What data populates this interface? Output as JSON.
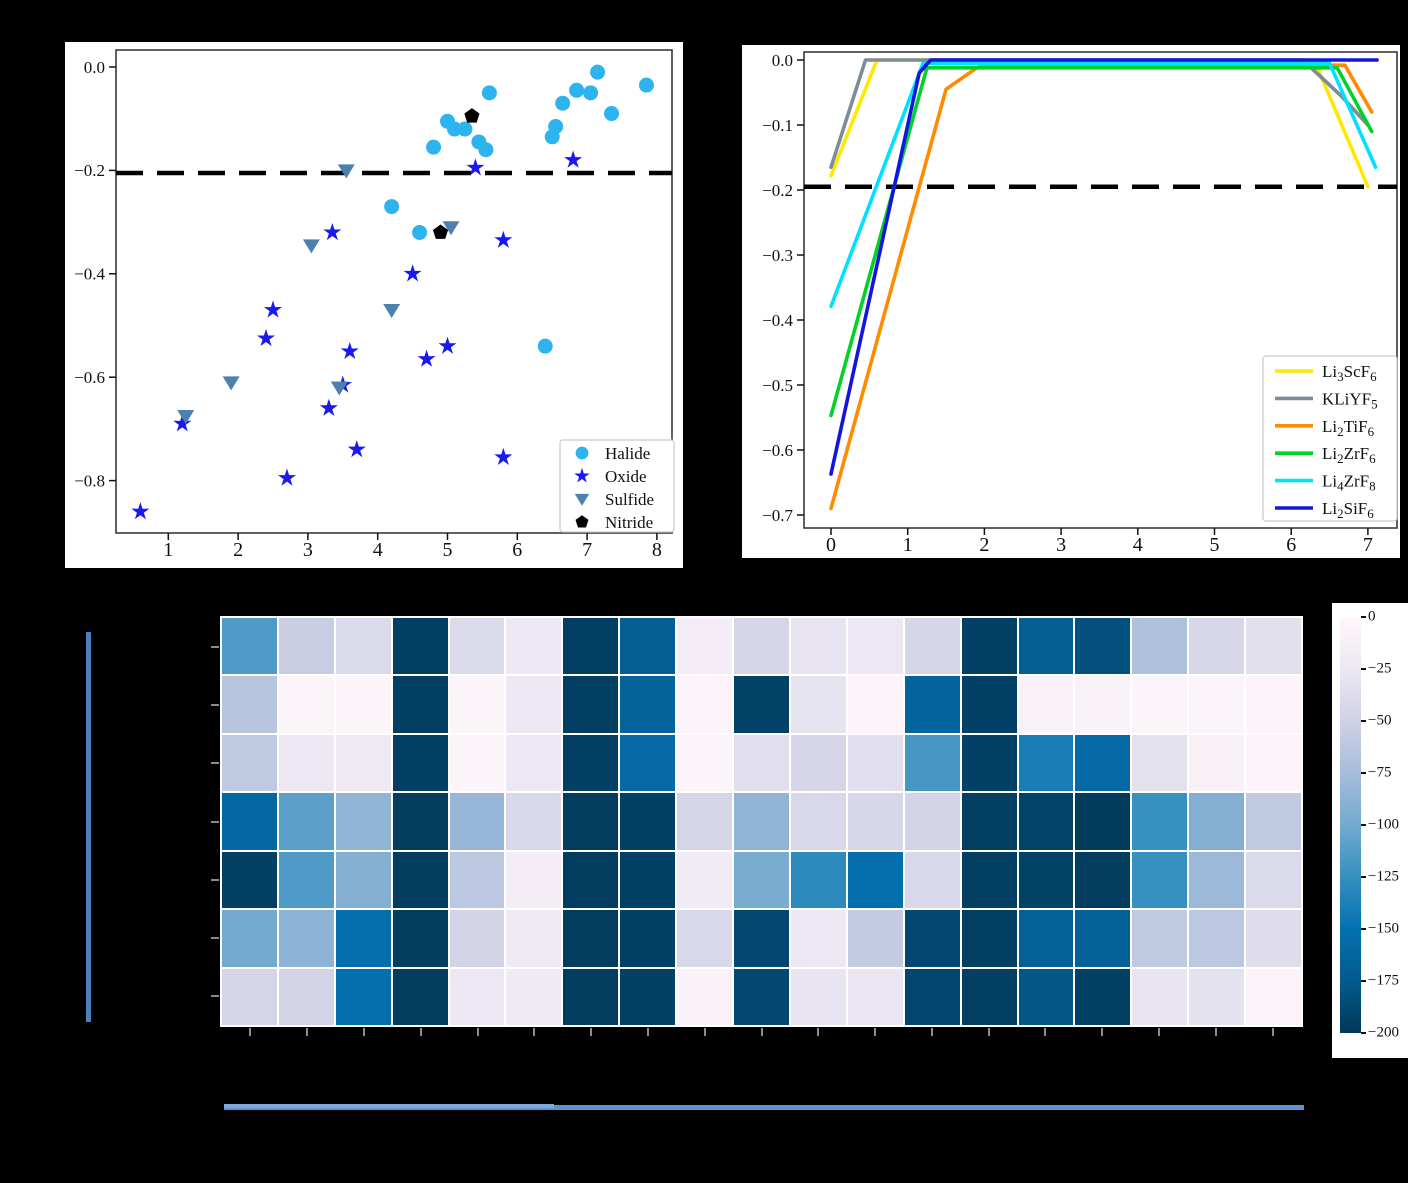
{
  "figure": {
    "background": "#000000",
    "panel_background": "#ffffff"
  },
  "chart_data": [
    {
      "id": "scatter-decomposition-energy",
      "type": "scatter",
      "title": "",
      "xlabel": "",
      "ylabel": "",
      "xlim": [
        0.25,
        8.22
      ],
      "ylim": [
        -0.901,
        0.033
      ],
      "x_ticks": [
        "1",
        "2",
        "3",
        "4",
        "5",
        "6",
        "7",
        "8"
      ],
      "y_ticks": [
        {
          "v": 0.0,
          "label": "0.0"
        },
        {
          "v": -0.2,
          "label": "−0.2"
        },
        {
          "v": -0.4,
          "label": "−0.4"
        },
        {
          "v": -0.6,
          "label": "−0.6"
        },
        {
          "v": -0.8,
          "label": "−0.8"
        }
      ],
      "dashed_line_y": -0.205,
      "grid": false,
      "legend_position": "lower right",
      "series": [
        {
          "name": "Halide",
          "marker": "circle",
          "color": "#2db4ee",
          "points": [
            [
              4.8,
              -0.155
            ],
            [
              5.0,
              -0.105
            ],
            [
              5.1,
              -0.12
            ],
            [
              5.25,
              -0.12
            ],
            [
              5.45,
              -0.145
            ],
            [
              5.55,
              -0.16
            ],
            [
              5.6,
              -0.05
            ],
            [
              6.5,
              -0.135
            ],
            [
              6.55,
              -0.115
            ],
            [
              6.65,
              -0.07
            ],
            [
              6.85,
              -0.045
            ],
            [
              7.05,
              -0.05
            ],
            [
              7.15,
              -0.01
            ],
            [
              7.35,
              -0.09
            ],
            [
              7.85,
              -0.035
            ],
            [
              4.2,
              -0.27
            ],
            [
              4.6,
              -0.32
            ],
            [
              6.4,
              -0.54
            ]
          ]
        },
        {
          "name": "Oxide",
          "marker": "star",
          "color": "#1a1af0",
          "points": [
            [
              5.4,
              -0.195
            ],
            [
              6.8,
              -0.18
            ],
            [
              3.35,
              -0.32
            ],
            [
              5.8,
              -0.335
            ],
            [
              4.5,
              -0.4
            ],
            [
              2.5,
              -0.47
            ],
            [
              2.4,
              -0.525
            ],
            [
              3.6,
              -0.55
            ],
            [
              4.7,
              -0.565
            ],
            [
              5.0,
              -0.54
            ],
            [
              1.2,
              -0.69
            ],
            [
              3.5,
              -0.615
            ],
            [
              3.3,
              -0.66
            ],
            [
              3.7,
              -0.74
            ],
            [
              5.8,
              -0.755
            ],
            [
              2.7,
              -0.795
            ],
            [
              0.6,
              -0.86
            ]
          ]
        },
        {
          "name": "Sulfide",
          "marker": "triangle-down",
          "color": "#4d80ad",
          "points": [
            [
              3.55,
              -0.2
            ],
            [
              3.05,
              -0.345
            ],
            [
              5.05,
              -0.31
            ],
            [
              4.2,
              -0.47
            ],
            [
              1.9,
              -0.61
            ],
            [
              3.45,
              -0.62
            ],
            [
              1.25,
              -0.675
            ]
          ]
        },
        {
          "name": "Nitride",
          "marker": "pentagon",
          "color": "#000000",
          "points": [
            [
              5.35,
              -0.095
            ],
            [
              4.9,
              -0.32
            ]
          ]
        }
      ]
    },
    {
      "id": "line-energy-vs-voltage",
      "type": "line",
      "title": "",
      "xlabel": "",
      "ylabel": "",
      "xlim": [
        -0.35,
        7.38
      ],
      "ylim": [
        -0.719,
        0.013
      ],
      "x_ticks": [
        "0",
        "1",
        "2",
        "3",
        "4",
        "5",
        "6",
        "7"
      ],
      "y_ticks": [
        {
          "v": 0.0,
          "label": "0.0"
        },
        {
          "v": -0.1,
          "label": "−0.1"
        },
        {
          "v": -0.2,
          "label": "−0.2"
        },
        {
          "v": -0.3,
          "label": "−0.3"
        },
        {
          "v": -0.4,
          "label": "−0.4"
        },
        {
          "v": -0.5,
          "label": "−0.5"
        },
        {
          "v": -0.6,
          "label": "−0.6"
        },
        {
          "v": -0.7,
          "label": "−0.7"
        }
      ],
      "dashed_line_y": -0.195,
      "grid": false,
      "legend_position": "lower right",
      "series": [
        {
          "name": "Li3ScF6",
          "label_parts": [
            [
              "Li",
              0
            ],
            [
              "3",
              1
            ],
            [
              "ScF",
              0
            ],
            [
              "6",
              1
            ]
          ],
          "color": "#ffe900",
          "points": [
            [
              0,
              -0.178
            ],
            [
              0.6,
              0.0
            ],
            [
              6.3,
              0.0
            ],
            [
              7.0,
              -0.195
            ]
          ]
        },
        {
          "name": "KLiYF5",
          "label_parts": [
            [
              "KLiYF",
              0
            ],
            [
              "5",
              1
            ]
          ],
          "color": "#7e8c99",
          "points": [
            [
              0,
              -0.165
            ],
            [
              0.45,
              0.0
            ],
            [
              6.15,
              0.0
            ],
            [
              6.65,
              -0.055
            ],
            [
              7.0,
              -0.1
            ]
          ]
        },
        {
          "name": "Li2TiF6",
          "label_parts": [
            [
              "Li",
              0
            ],
            [
              "2",
              1
            ],
            [
              "TiF",
              0
            ],
            [
              "6",
              1
            ]
          ],
          "color": "#ff8c00",
          "points": [
            [
              0,
              -0.69
            ],
            [
              1.5,
              -0.045
            ],
            [
              1.95,
              -0.008
            ],
            [
              6.7,
              -0.008
            ],
            [
              7.05,
              -0.08
            ]
          ]
        },
        {
          "name": "Li2ZrF6",
          "label_parts": [
            [
              "Li",
              0
            ],
            [
              "2",
              1
            ],
            [
              "ZrF",
              0
            ],
            [
              "6",
              1
            ]
          ],
          "color": "#00d228",
          "points": [
            [
              0,
              -0.547
            ],
            [
              1.25,
              -0.012
            ],
            [
              6.6,
              -0.012
            ],
            [
              7.05,
              -0.11
            ]
          ]
        },
        {
          "name": "Li4ZrF8",
          "label_parts": [
            [
              "Li",
              0
            ],
            [
              "4",
              1
            ],
            [
              "ZrF",
              0
            ],
            [
              "8",
              1
            ]
          ],
          "color": "#00e1ff",
          "points": [
            [
              0,
              -0.379
            ],
            [
              1.2,
              -0.005
            ],
            [
              6.5,
              -0.005
            ],
            [
              7.1,
              -0.165
            ]
          ]
        },
        {
          "name": "Li2SiF6",
          "label_parts": [
            [
              "Li",
              0
            ],
            [
              "2",
              1
            ],
            [
              "SiF",
              0
            ],
            [
              "6",
              1
            ]
          ],
          "color": "#1414e0",
          "points": [
            [
              0,
              -0.637
            ],
            [
              1.15,
              -0.02
            ],
            [
              1.3,
              0.0
            ],
            [
              7.12,
              0.0
            ]
          ]
        }
      ]
    },
    {
      "id": "heatmap-with-colorbar",
      "type": "heatmap",
      "rows": 7,
      "cols": 19,
      "vmin": -200,
      "vmax": 0,
      "colormap_stops": [
        [
          0.0,
          "#fff7fb"
        ],
        [
          0.125,
          "#ece7f2"
        ],
        [
          0.25,
          "#d0d1e6"
        ],
        [
          0.375,
          "#a6bddb"
        ],
        [
          0.5,
          "#74a9cf"
        ],
        [
          0.625,
          "#3690c0"
        ],
        [
          0.75,
          "#0570b0"
        ],
        [
          0.875,
          "#045a8d"
        ],
        [
          1.0,
          "#023858"
        ]
      ],
      "colorbar_ticks": [
        "0",
        "−25",
        "−50",
        "−75",
        "−100",
        "−125",
        "−150",
        "−175",
        "−200"
      ],
      "values": [
        [
          -115,
          -55,
          -40,
          -195,
          -40,
          -25,
          -195,
          -170,
          -15,
          -45,
          -28,
          -25,
          -45,
          -194,
          -170,
          -182,
          -70,
          -43,
          -33
        ],
        [
          -65,
          -5,
          -5,
          -195,
          -5,
          -25,
          -195,
          -165,
          -4,
          -193,
          -30,
          -4,
          -163,
          -194,
          -8,
          -8,
          -5,
          -6,
          -4
        ],
        [
          -60,
          -25,
          -22,
          -195,
          -5,
          -25,
          -195,
          -158,
          -5,
          -35,
          -44,
          -35,
          -118,
          -194,
          -140,
          -158,
          -32,
          -11,
          -4
        ],
        [
          -160,
          -110,
          -85,
          -197,
          -82,
          -42,
          -196,
          -194,
          -45,
          -86,
          -42,
          -43,
          -47,
          -195,
          -192,
          -198,
          -125,
          -92,
          -60
        ],
        [
          -195,
          -115,
          -92,
          -196,
          -62,
          -15,
          -196,
          -194,
          -18,
          -97,
          -130,
          -152,
          -42,
          -195,
          -193,
          -197,
          -125,
          -80,
          -40
        ],
        [
          -100,
          -88,
          -152,
          -196,
          -48,
          -22,
          -196,
          -194,
          -42,
          -188,
          -25,
          -58,
          -188,
          -195,
          -168,
          -167,
          -60,
          -62,
          -37
        ],
        [
          -45,
          -48,
          -152,
          -196,
          -25,
          -20,
          -196,
          -194,
          -8,
          -188,
          -28,
          -27,
          -190,
          -195,
          -178,
          -194,
          -28,
          -31,
          -6
        ]
      ]
    }
  ],
  "annotations": {
    "left_vertical_line": {
      "color": "#4a80c0"
    },
    "bottom_horizontal_line": {
      "color": "#5b92cf"
    },
    "bottom_horizontal_line_light": {
      "color": "#7fa9db"
    }
  }
}
